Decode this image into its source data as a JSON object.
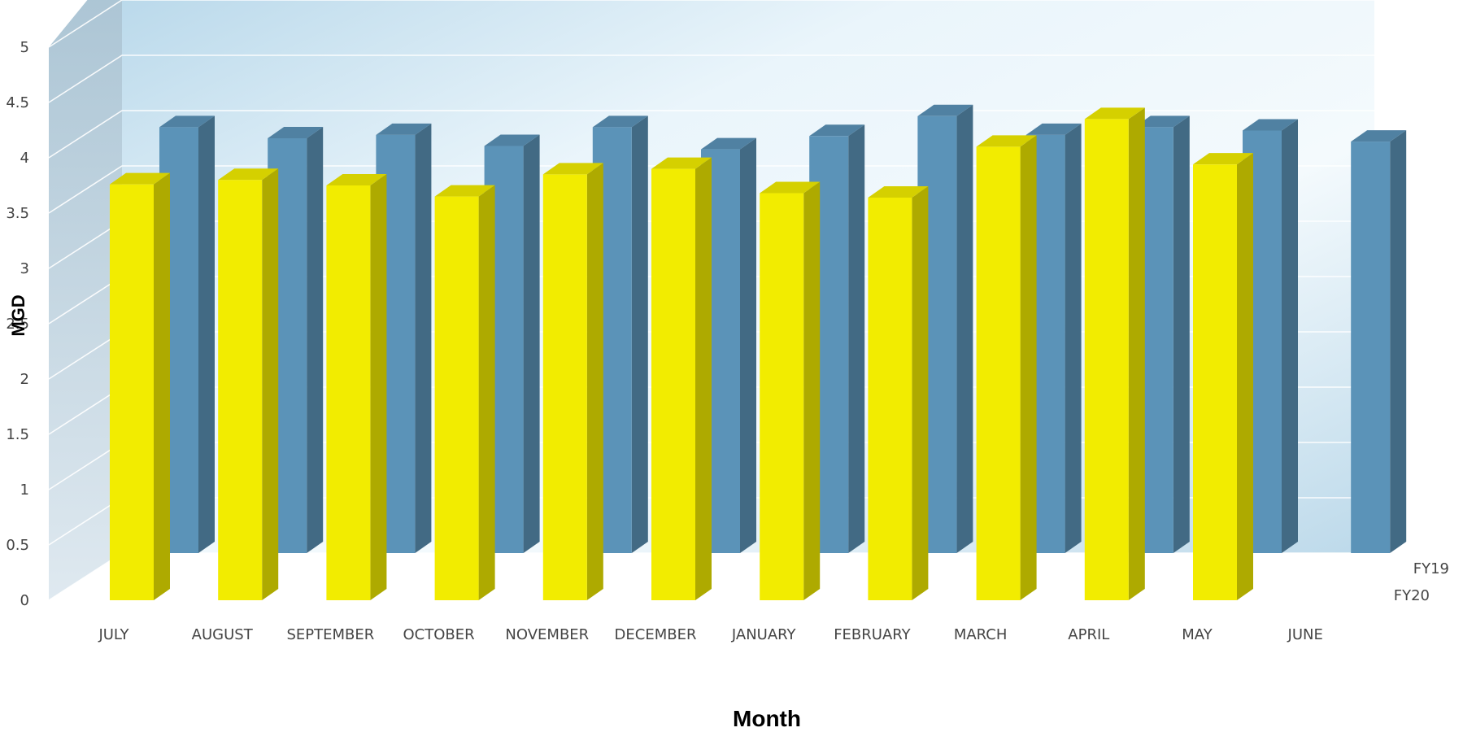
{
  "chart_data": {
    "type": "bar",
    "subtype": "3d-clustered-column",
    "title": "",
    "xlabel": "Month",
    "ylabel": "MGD",
    "ylim": [
      0,
      5
    ],
    "yticks": [
      "0",
      "0.5",
      "1",
      "1.5",
      "2",
      "2.5",
      "3",
      "3.5",
      "4",
      "4.5",
      "5"
    ],
    "categories": [
      "JULY",
      "AUGUST",
      "SEPTEMBER",
      "OCTOBER",
      "NOVEMBER",
      "DECEMBER",
      "JANUARY",
      "FEBRUARY",
      "MARCH",
      "APRIL",
      "MAY",
      "JUNE"
    ],
    "series": [
      {
        "name": "FY20",
        "color": "#f2ec00",
        "values": [
          3.76,
          3.8,
          3.75,
          3.65,
          3.85,
          3.9,
          3.68,
          3.64,
          4.1,
          4.35,
          3.94,
          null
        ]
      },
      {
        "name": "FY19",
        "color": "#5b93b8",
        "values": [
          3.85,
          3.75,
          3.78,
          3.68,
          3.85,
          3.65,
          3.77,
          3.95,
          3.78,
          3.85,
          3.82,
          3.72
        ]
      }
    ],
    "grid": true,
    "series_labels_position": "right"
  }
}
